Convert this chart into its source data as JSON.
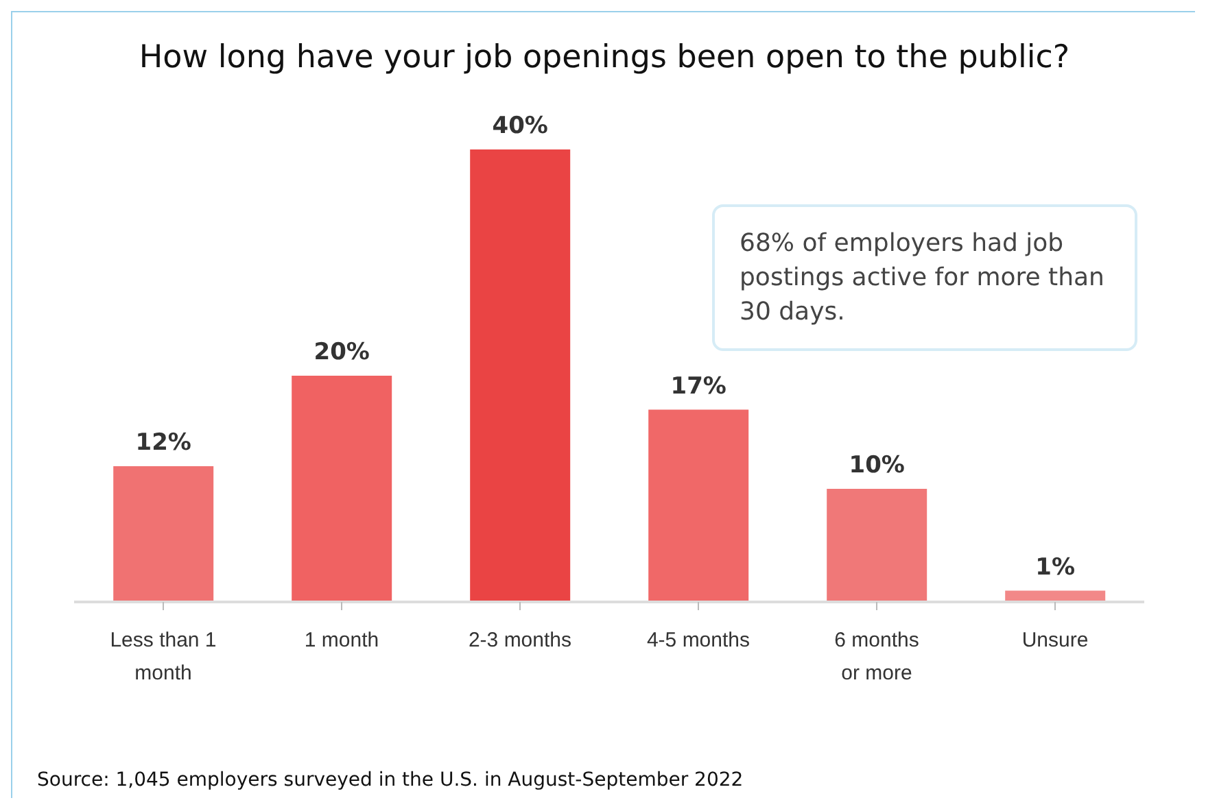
{
  "chart_data": {
    "type": "bar",
    "title": "How long have your job openings been open to the public?",
    "categories": [
      "Less than 1 month",
      "1 month",
      "2-3 months",
      "4-5 months",
      "6 months or more",
      "Unsure"
    ],
    "values": [
      12,
      20,
      40,
      17,
      10,
      1
    ],
    "value_labels": [
      "12%",
      "20%",
      "40%",
      "17%",
      "10%",
      "1%"
    ],
    "colors": [
      "#f07272",
      "#f06262",
      "#ea4444",
      "#f06868",
      "#f07878",
      "#f28888"
    ],
    "legend": false,
    "grid": false,
    "annotations": [
      "68% of employers had job postings active for more than 30 days.",
      "Source: 1,045 employers surveyed in the U.S. in August-September 2022"
    ]
  }
}
